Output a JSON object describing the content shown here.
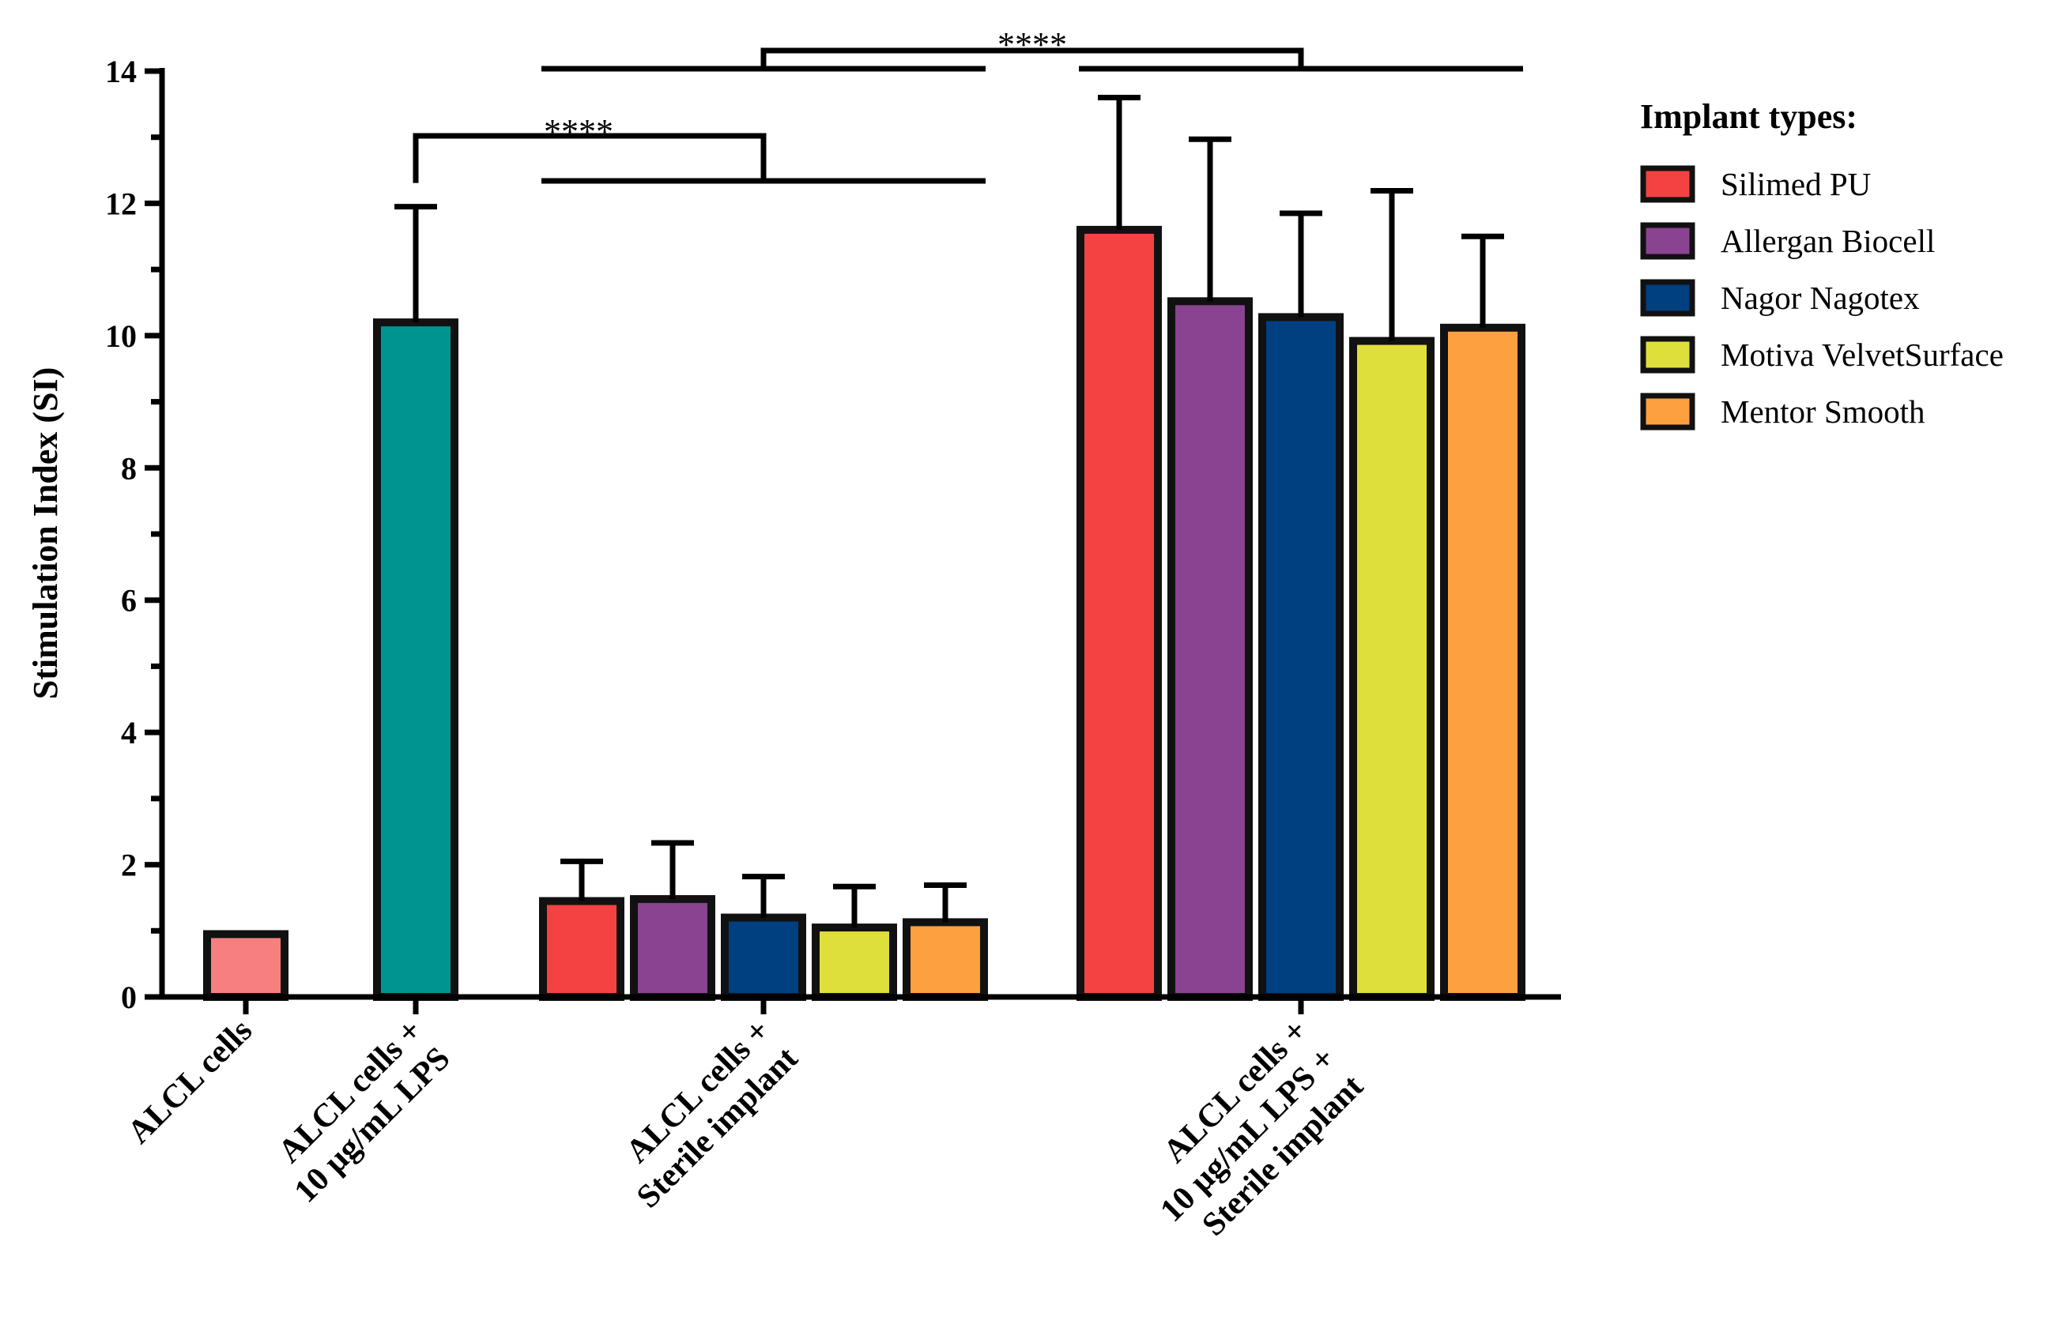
{
  "chart_data": {
    "type": "bar",
    "ylabel": "Stimulation Index (SI)",
    "ylim": [
      0,
      14
    ],
    "yticks": [
      "0",
      "2",
      "4",
      "6",
      "8",
      "10",
      "12",
      "14"
    ],
    "grid": false,
    "groups": [
      {
        "label": [
          "ALCL cells"
        ],
        "bars": [
          {
            "series": "ALCL cells",
            "value": 0.95,
            "error": 0,
            "color": "#f77f7f"
          }
        ]
      },
      {
        "label": [
          "ALCL cells +",
          "10 µg/mL LPS"
        ],
        "bars": [
          {
            "series": "LPS",
            "value": 10.2,
            "error": 1.75,
            "color": "#009490"
          }
        ]
      },
      {
        "label": [
          "ALCL cells +",
          "Sterile implant"
        ],
        "bars": [
          {
            "series": "Silimed PU",
            "value": 1.45,
            "error": 0.6,
            "color": "#f44242"
          },
          {
            "series": "Allergan Biocell",
            "value": 1.48,
            "error": 0.85,
            "color": "#8a4390"
          },
          {
            "series": "Nagor Nagotex",
            "value": 1.2,
            "error": 0.62,
            "color": "#003f80"
          },
          {
            "series": "Motiva VelvetSurface",
            "value": 1.05,
            "error": 0.62,
            "color": "#dfdf3c"
          },
          {
            "series": "Mentor Smooth",
            "value": 1.13,
            "error": 0.56,
            "color": "#fda140"
          }
        ]
      },
      {
        "label": [
          "ALCL cells +",
          "10 µg/mL LPS +",
          "Sterile implant"
        ],
        "bars": [
          {
            "series": "Silimed PU",
            "value": 11.6,
            "error": 2.0,
            "color": "#f44242"
          },
          {
            "series": "Allergan Biocell",
            "value": 10.52,
            "error": 2.45,
            "color": "#8a4390"
          },
          {
            "series": "Nagor Nagotex",
            "value": 10.28,
            "error": 1.57,
            "color": "#003f80"
          },
          {
            "series": "Motiva VelvetSurface",
            "value": 9.92,
            "error": 2.27,
            "color": "#dfdf3c"
          },
          {
            "series": "Mentor Smooth",
            "value": 10.12,
            "error": 1.38,
            "color": "#fda140"
          }
        ]
      }
    ],
    "legend": {
      "title": "Implant types:",
      "position": "right",
      "entries": [
        {
          "label": "Silimed PU",
          "color": "#f44242"
        },
        {
          "label": "Allergan Biocell",
          "color": "#8a4390"
        },
        {
          "label": "Nagor Nagotex",
          "color": "#003f80"
        },
        {
          "label": "Motiva VelvetSurface",
          "color": "#dfdf3c"
        },
        {
          "label": "Mentor Smooth",
          "color": "#fda140"
        }
      ]
    },
    "significance": [
      {
        "label": "****",
        "from_group": 1,
        "to_group": 2
      },
      {
        "label": "****",
        "from_group": 2,
        "to_group": 3
      }
    ]
  }
}
